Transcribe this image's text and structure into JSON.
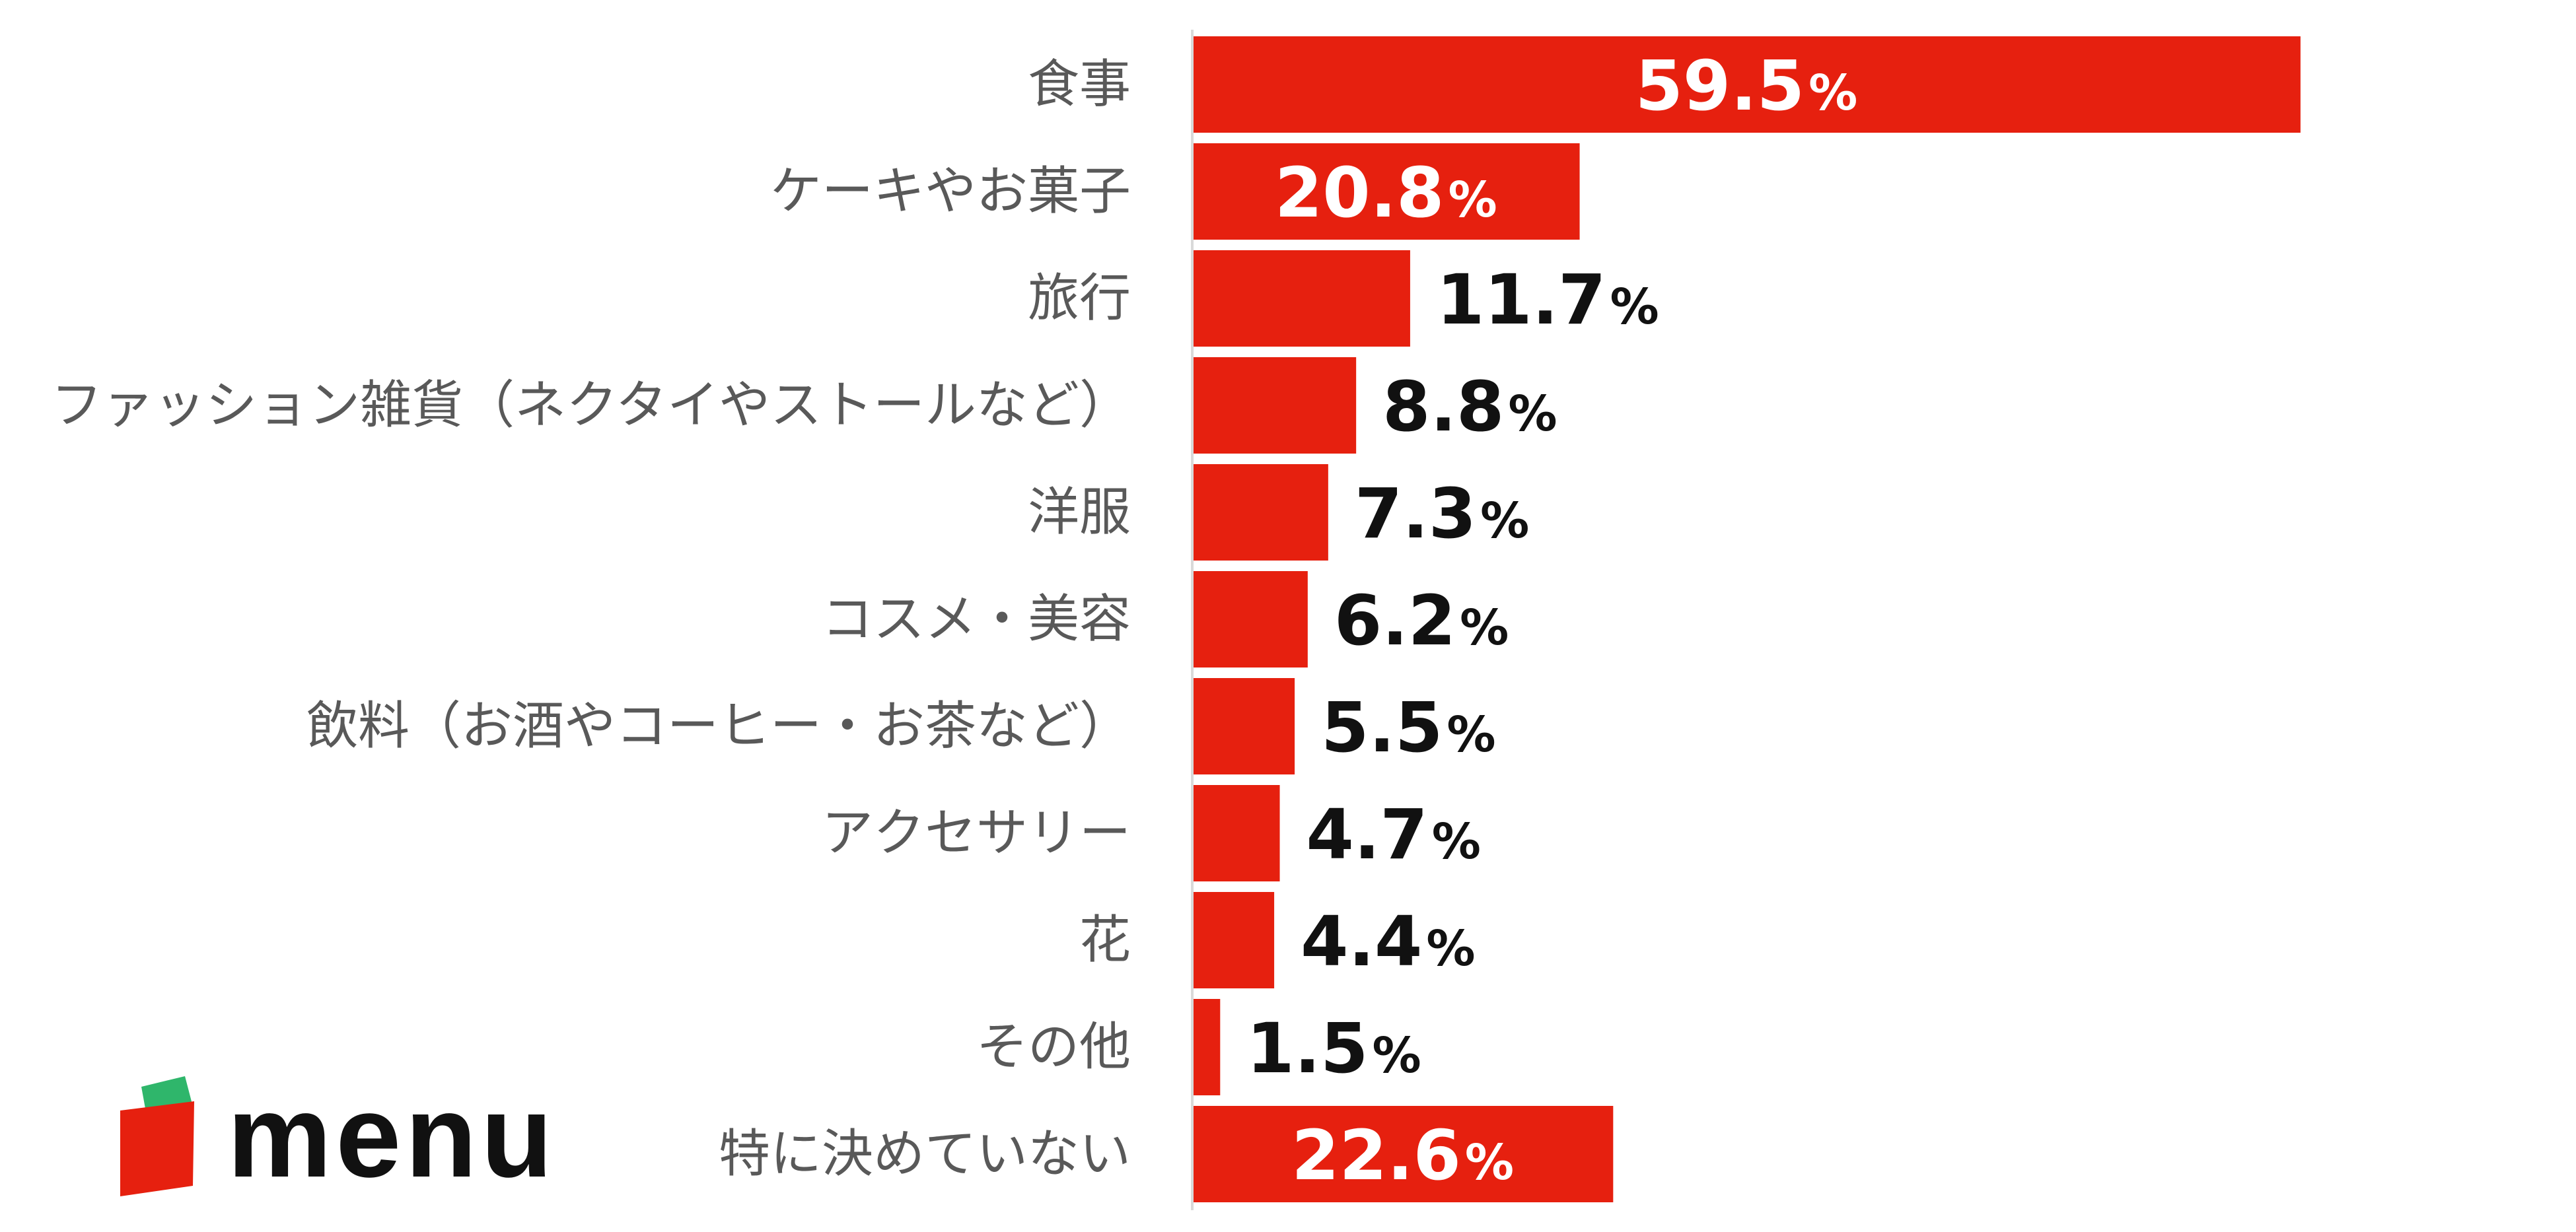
{
  "chart_data": {
    "type": "bar",
    "orientation": "horizontal",
    "categories": [
      "食事",
      "ケーキやお菓子",
      "旅行",
      "ファッション雑貨（ネクタイやストールなど）",
      "洋服",
      "コスメ・美容",
      "飲料（お酒やコーヒー・お茶など）",
      "アクセサリー",
      "花",
      "その他",
      "特に決めていない"
    ],
    "values": [
      59.5,
      20.8,
      11.7,
      8.8,
      7.3,
      6.2,
      5.5,
      4.7,
      4.4,
      1.5,
      22.6
    ],
    "value_labels": [
      "59.5",
      "20.8",
      "11.7",
      "8.8",
      "7.3",
      "6.2",
      "5.5",
      "4.7",
      "4.4",
      "1.5",
      "22.6"
    ],
    "unit": "%",
    "title": "",
    "xlabel": "",
    "ylabel": "",
    "grid": false,
    "legend": "none",
    "colors": {
      "bar": "#e6200f",
      "axis": "#d9d9d9",
      "category_text": "#595959",
      "value_text_outside": "#111111",
      "value_text_inside": "#ffffff"
    }
  },
  "logo": {
    "text": "menu",
    "icon": "menu-box-logo-icon",
    "colors": {
      "red": "#e6200f",
      "green": "#2fb66b",
      "text": "#111111"
    }
  }
}
